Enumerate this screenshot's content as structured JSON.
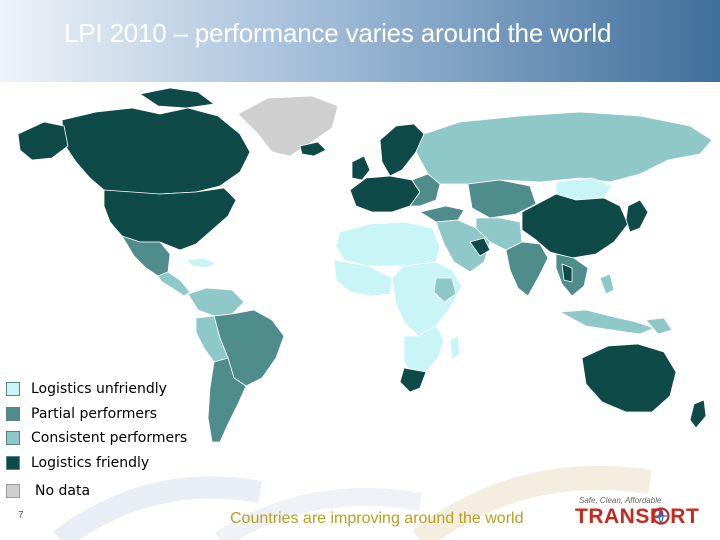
{
  "slide": {
    "title": "LPI 2010 – performance varies around the world",
    "page_number": "7",
    "tagline": "Countries are improving around the world"
  },
  "logo": {
    "top_text": "Safe, Clean, Affordable",
    "word": "TRANSP  RT"
  },
  "legend": [
    {
      "label": "Logistics  unfriendly",
      "color": "#c9f5f7"
    },
    {
      "label": "Partial performers",
      "color": "#4f8c8c"
    },
    {
      "label": "Consistent performers",
      "color": "#8ec8c8"
    },
    {
      "label": "Logistics friendly",
      "color": "#0e4a48"
    },
    {
      "label": "No data",
      "color": "#cfcfcf"
    }
  ],
  "colors": {
    "logistics_unfriendly": "#c9f5f7",
    "partial_performers": "#4f8c8c",
    "consistent_performers": "#8ec8c8",
    "logistics_friendly": "#0e4a48",
    "no_data": "#cfcfcf",
    "title_text": "#ffffff",
    "tagline_text": "#b8a020",
    "logo_red": "#c8281e"
  }
}
